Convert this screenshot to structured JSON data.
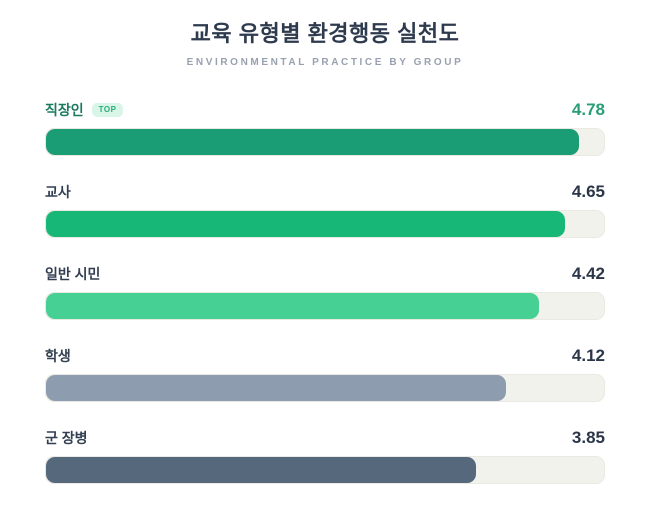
{
  "header": {
    "title": "교육 유형별 환경행동 실천도",
    "subtitle": "ENVIRONMENTAL PRACTICE BY GROUP"
  },
  "badge_label": "TOP",
  "colors": {
    "title_text": "#2e3a4d",
    "subtitle_text": "#98a1b0",
    "label_text": "#333f51",
    "value_text": "#2b3648",
    "top_label_text": "#1b7a5e",
    "top_value_text": "#2a9d77",
    "badge_bg": "#d9f5e8",
    "badge_text": "#27ae7a",
    "track_bg": "#f2f2ec"
  },
  "chart_data": {
    "type": "bar",
    "orientation": "horizontal",
    "title": "교육 유형별 환경행동 실천도",
    "subtitle": "ENVIRONMENTAL PRACTICE BY GROUP",
    "categories": [
      "직장인",
      "교사",
      "일반 시민",
      "학생",
      "군 장병"
    ],
    "values": [
      4.78,
      4.65,
      4.42,
      4.12,
      3.85
    ],
    "value_labels": [
      "4.78",
      "4.65",
      "4.42",
      "4.12",
      "3.85"
    ],
    "xlim": [
      0,
      5
    ],
    "grid": false,
    "legend": false,
    "bar_colors": [
      "#1a9c74",
      "#17b877",
      "#47d093",
      "#8e9cb0",
      "#56687b"
    ],
    "badges": [
      "TOP",
      null,
      null,
      null,
      null
    ],
    "highlight_index": 0
  }
}
